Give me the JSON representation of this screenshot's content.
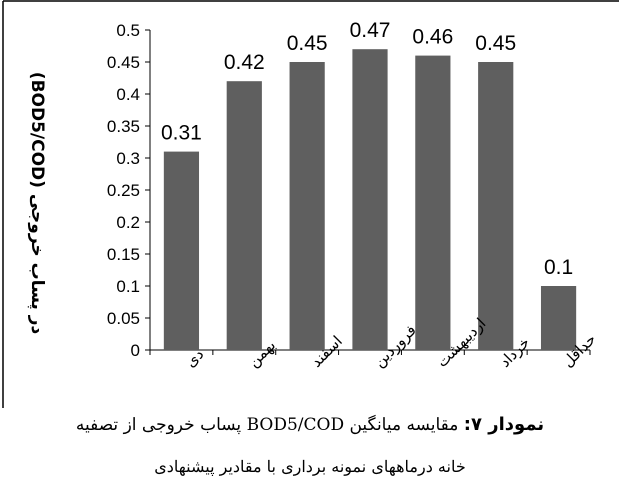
{
  "chart_data": {
    "type": "bar",
    "categories": [
      "دی",
      "بهمن",
      "اسفند",
      "فروردین",
      "اردیبهشت",
      "خرداد",
      "حداقل"
    ],
    "values": [
      0.31,
      0.42,
      0.45,
      0.47,
      0.46,
      0.45,
      0.1
    ],
    "data_labels": [
      "0.31",
      "0.42",
      "0.45",
      "0.47",
      "0.46",
      "0.45",
      "0.1"
    ],
    "yticks": [
      "0",
      "0.05",
      "0.1",
      "0.15",
      "0.2",
      "0.25",
      "0.3",
      "0.35",
      "0.4",
      "0.45",
      "0.5"
    ],
    "ylim": [
      0,
      0.5
    ],
    "ylabel": "(BOD5/COD)  در پساب خروجی",
    "bar_color": "#5f5f5f",
    "grid": false,
    "legend": false
  },
  "caption": {
    "figure_label": "نمودار ۷:",
    "line1": "مقایسه میانگین BOD5/COD پساب خروجی از تصفیه",
    "line2": "خانه درماههای نمونه برداری با مقادیر پیشنهادی"
  }
}
